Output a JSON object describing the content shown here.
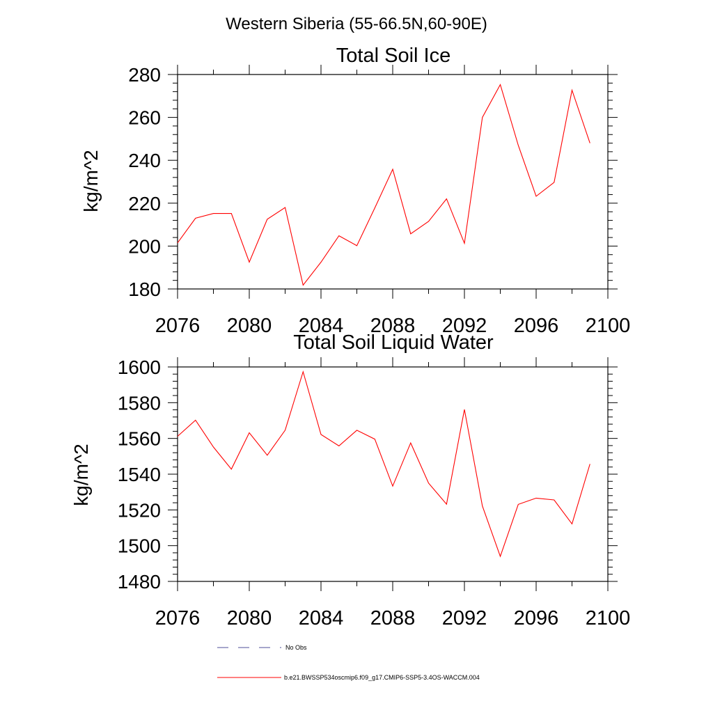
{
  "figure_title": "Western Siberia (55-66.5N,60-90E)",
  "chart_data": [
    {
      "type": "line",
      "title": "Total Soil Ice",
      "xlabel": "",
      "ylabel": "kg/m^2",
      "xlim": [
        2076,
        2100
      ],
      "ylim": [
        180,
        280
      ],
      "x_ticks": [
        2076,
        2080,
        2084,
        2088,
        2092,
        2096,
        2100
      ],
      "y_ticks": [
        180,
        200,
        220,
        240,
        260,
        280
      ],
      "grid": false,
      "series": [
        {
          "name": "b.e21.BWSSP534oscmip6.f09_g17.CMIP6-SSP5-3.4OS-WACCM.004",
          "color": "#ff0000",
          "x": [
            2076,
            2077,
            2078,
            2079,
            2080,
            2081,
            2082,
            2083,
            2084,
            2085,
            2086,
            2087,
            2088,
            2089,
            2090,
            2091,
            2092,
            2093,
            2094,
            2095,
            2096,
            2097,
            2098,
            2099
          ],
          "values": [
            201.5,
            213.0,
            215.2,
            215.2,
            192.5,
            212.5,
            218.0,
            181.8,
            192.5,
            204.8,
            200.2,
            217.8,
            235.8,
            205.7,
            211.5,
            222.0,
            201.3,
            260.0,
            275.3,
            247.0,
            223.2,
            229.7,
            272.7,
            248.0
          ]
        }
      ]
    },
    {
      "type": "line",
      "title": "Total Soil Liquid Water",
      "xlabel": "",
      "ylabel": "kg/m^2",
      "xlim": [
        2076,
        2100
      ],
      "ylim": [
        1480,
        1600
      ],
      "x_ticks": [
        2076,
        2080,
        2084,
        2088,
        2092,
        2096,
        2100
      ],
      "y_ticks": [
        1480,
        1500,
        1520,
        1540,
        1560,
        1580,
        1600
      ],
      "grid": false,
      "series": [
        {
          "name": "b.e21.BWSSP534oscmip6.f09_g17.CMIP6-SSP5-3.4OS-WACCM.004",
          "color": "#ff0000",
          "x": [
            2076,
            2077,
            2078,
            2079,
            2080,
            2081,
            2082,
            2083,
            2084,
            2085,
            2086,
            2087,
            2088,
            2089,
            2090,
            2091,
            2092,
            2093,
            2094,
            2095,
            2096,
            2097,
            2098,
            2099
          ],
          "values": [
            1561.2,
            1570.2,
            1555.2,
            1542.8,
            1563.2,
            1550.6,
            1564.6,
            1597.3,
            1562.2,
            1555.8,
            1564.6,
            1559.6,
            1533.3,
            1557.5,
            1535.0,
            1523.2,
            1576.2,
            1522.2,
            1494.0,
            1523.1,
            1526.6,
            1525.6,
            1512.2,
            1545.7
          ]
        }
      ]
    }
  ],
  "legend": {
    "placement": "bottom-left",
    "entries": [
      {
        "label": "No Obs",
        "color": "#4c4c99",
        "style": "dashed"
      },
      {
        "label": "b.e21.BWSSP534oscmip6.f09_g17.CMIP6-SSP5-3.4OS-WACCM.004",
        "color": "#ff0000",
        "style": "solid"
      }
    ]
  }
}
